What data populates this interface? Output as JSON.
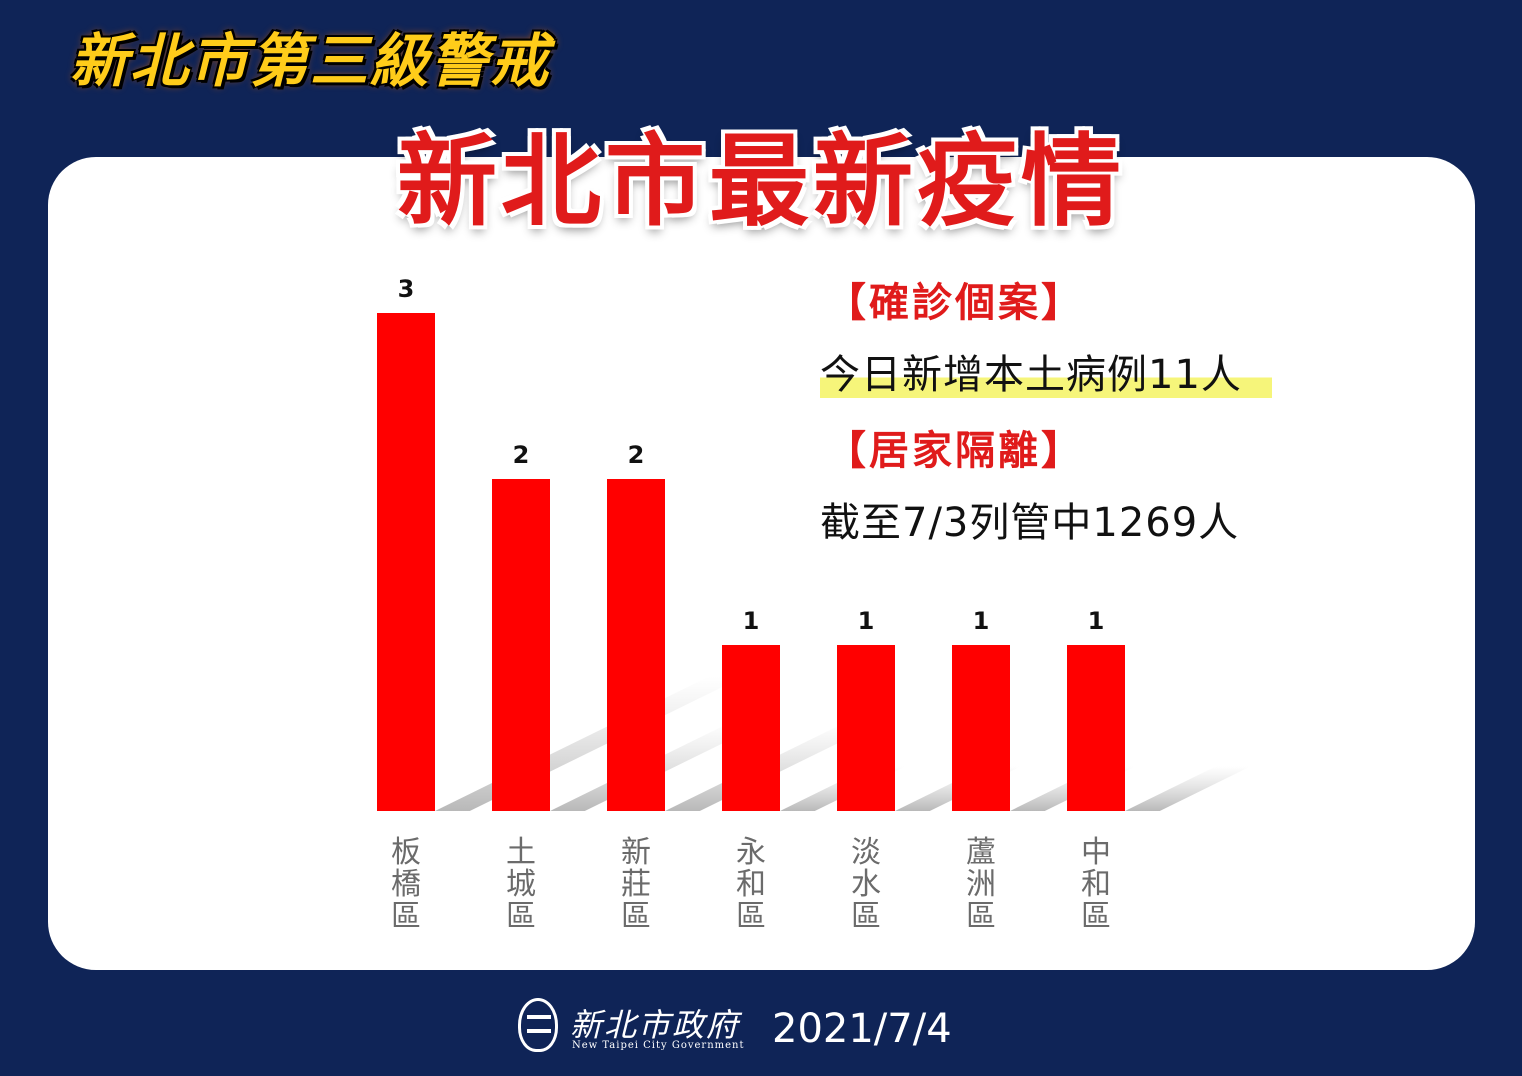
{
  "banner": "新北市第三級警戒",
  "title": "新北市最新疫情",
  "info": {
    "confirmed_header": "【確診個案】",
    "confirmed_text": "今日新增本土病例11人",
    "quarantine_header": "【居家隔離】",
    "quarantine_text": "截至7/3列管中1269人"
  },
  "footer": {
    "org_cn": "新北市政府",
    "org_en": "New Taipei City Government",
    "date": "2021/7/4"
  },
  "colors": {
    "background": "#0f2457",
    "bar": "#ff0000",
    "title": "#e01b1b",
    "banner": "#ffcc1a"
  },
  "chart_data": {
    "type": "bar",
    "categories": [
      "板橋區",
      "土城區",
      "新莊區",
      "永和區",
      "淡水區",
      "蘆洲區",
      "中和區"
    ],
    "values": [
      3,
      2,
      2,
      1,
      1,
      1,
      1
    ],
    "ylim": [
      0,
      3
    ],
    "grid": false,
    "legend": "none"
  }
}
